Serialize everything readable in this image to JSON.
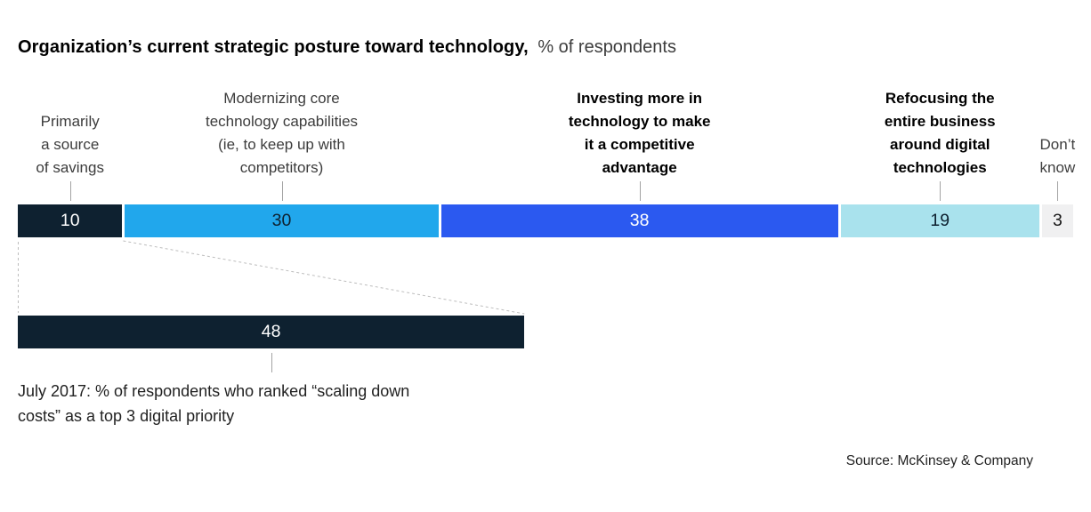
{
  "title": {
    "bold": "Organization’s current strategic posture toward technology,",
    "unit": "% of respondents"
  },
  "chart_data": {
    "type": "bar",
    "subtype": "horizontal-stacked-100pct",
    "title": "Organization’s current strategic posture toward technology",
    "unit": "% of respondents",
    "axis_scale": [
      0,
      100
    ],
    "segments": [
      {
        "label": "Primarily a source of savings",
        "label_lines": [
          "Primarily",
          "a source",
          "of savings"
        ],
        "value": 10,
        "color": "#0e2130",
        "text_color": "#ffffff",
        "bold_label": false
      },
      {
        "label": "Modernizing core technology capabilities (ie, to keep up with competitors)",
        "label_lines": [
          "Modernizing core",
          "technology capabilities",
          "(ie, to keep up with",
          "competitors)"
        ],
        "value": 30,
        "color": "#21a7ec",
        "text_color": "#0e2130",
        "bold_label": false
      },
      {
        "label": "Investing more in technology to make it a competitive advantage",
        "label_lines": [
          "Investing more in",
          "technology to make",
          "it a competitive",
          "advantage"
        ],
        "value": 38,
        "color": "#2b59f0",
        "text_color": "#ffffff",
        "bold_label": true
      },
      {
        "label": "Refocusing the entire business around digital technologies",
        "label_lines": [
          "Refocusing the",
          "entire business",
          "around digital",
          "technologies"
        ],
        "value": 19,
        "color": "#a9e2ed",
        "text_color": "#0e2130",
        "bold_label": true
      },
      {
        "label": "Don’t know",
        "label_lines": [
          "Don’t",
          "know"
        ],
        "value": 3,
        "color": "#f0f0f1",
        "text_color": "#1a1a1a",
        "bold_label": false
      }
    ],
    "callout_bar": {
      "value": 48,
      "color": "#0e2130",
      "text_color": "#ffffff",
      "linked_segment": "Primarily a source of savings",
      "label": "July 2017: % of respondents who ranked “scaling down costs” as a top 3 digital priority",
      "label_lines": [
        "July 2017: % of respondents who ranked “scaling down",
        "costs” as a top 3 digital priority"
      ]
    },
    "connector_style": {
      "dashed": true,
      "color": "#bdbdbd"
    },
    "source": "Source: McKinsey & Company"
  }
}
